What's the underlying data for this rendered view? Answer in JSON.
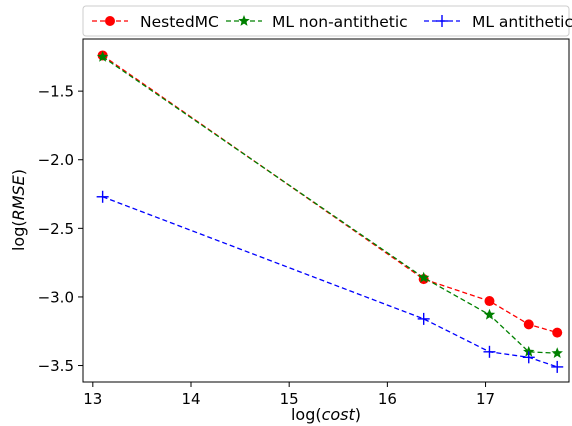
{
  "chart_data": {
    "type": "line",
    "xlabel_prefix": "log(",
    "xlabel_var": "cost",
    "xlabel_suffix": ")",
    "ylabel_prefix": "log(",
    "ylabel_var": "RMSE",
    "ylabel_suffix": ")",
    "xlim": [
      12.9,
      17.85
    ],
    "ylim": [
      -3.62,
      -1.12
    ],
    "xticks": [
      13,
      14,
      15,
      16,
      17
    ],
    "yticks": [
      -1.5,
      -2.0,
      -2.5,
      -3.0,
      -3.5
    ],
    "xtick_labels": [
      "13",
      "14",
      "15",
      "16",
      "17"
    ],
    "ytick_labels": [
      "−1.5",
      "−2.0",
      "−2.5",
      "−3.0",
      "−3.5"
    ],
    "grid": false,
    "legend_position": "top",
    "series": [
      {
        "name": "NestedMC",
        "color": "#ff0000",
        "marker": "circle",
        "linestyle": "dashed",
        "x": [
          13.1,
          16.37,
          17.04,
          17.44,
          17.73
        ],
        "y": [
          -1.24,
          -2.87,
          -3.03,
          -3.2,
          -3.26
        ]
      },
      {
        "name": "ML non-antithetic",
        "color": "#008000",
        "marker": "star",
        "linestyle": "dashed",
        "x": [
          13.1,
          16.37,
          17.04,
          17.44,
          17.73
        ],
        "y": [
          -1.25,
          -2.86,
          -3.13,
          -3.4,
          -3.41
        ]
      },
      {
        "name": "ML antithetic",
        "color": "#0000ff",
        "marker": "plus",
        "linestyle": "dashed",
        "x": [
          13.1,
          16.37,
          17.04,
          17.44,
          17.73
        ],
        "y": [
          -2.27,
          -3.16,
          -3.4,
          -3.44,
          -3.51
        ]
      }
    ]
  }
}
